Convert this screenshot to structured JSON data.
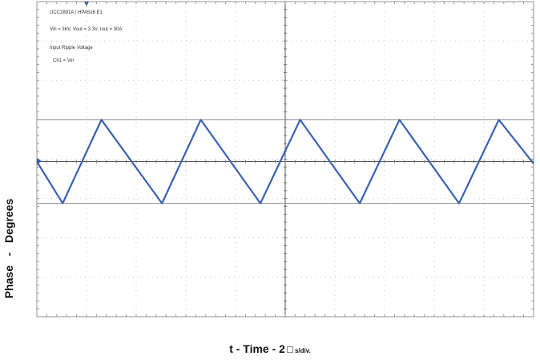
{
  "chart_data": {
    "type": "line",
    "annotations": [
      "UCC2891A / HPA526 E1",
      "Vin = 36V, Vout = 3.3V, Iout = 30A",
      "Input Ripple Voltage",
      "Ch1 = Vin"
    ],
    "ylabel": {
      "left": "Phase",
      "sep": "-",
      "right": "Degrees"
    },
    "xlabel": {
      "main": "t - Time - 2",
      "unit": "s/div."
    },
    "x_divisions": 10,
    "y_divisions": 8,
    "grid": true,
    "cursor_levels_div": [
      1,
      -1
    ],
    "series": [
      {
        "color": "#3b62b0",
        "points": [
          [
            0.0,
            0.0
          ],
          [
            0.52,
            -1.0
          ],
          [
            1.3,
            1.0
          ],
          [
            2.52,
            -1.0
          ],
          [
            3.3,
            1.0
          ],
          [
            4.5,
            -1.0
          ],
          [
            5.3,
            1.0
          ],
          [
            6.5,
            -1.0
          ],
          [
            7.3,
            1.0
          ],
          [
            8.5,
            -1.0
          ],
          [
            9.3,
            1.0
          ],
          [
            10.0,
            -0.05
          ]
        ]
      }
    ]
  },
  "colors": {
    "trace": "#3b62b0",
    "grid": "#c8c8c8",
    "frame": "#909090",
    "marker": "#3b62b0"
  }
}
